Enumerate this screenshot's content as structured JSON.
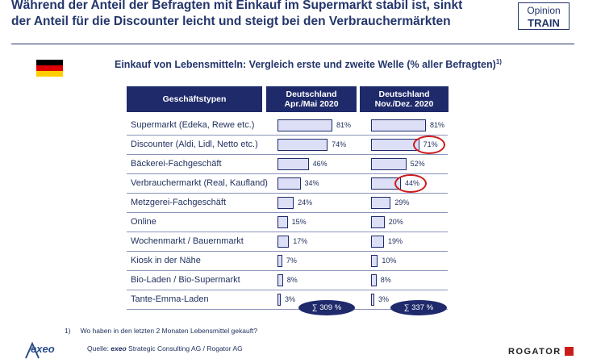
{
  "headline": {
    "line1": "Während der Anteil der Befragten mit Einkauf im Supermarkt stabil ist, sinkt",
    "line2": "der Anteil für die Discounter leicht und steigt bei den Verbrauchermärkten"
  },
  "badge": {
    "line1": "Opinion",
    "line2": "TRAIN"
  },
  "subtitle": "Einkauf von Lebensmitteln: Vergleich erste und zweite Welle (% aller Befragten)",
  "subtitle_sup": "1)",
  "colors": {
    "navy": "#1f2a6b",
    "bar_fill": "#dcdff5",
    "highlight": "#cc1b1b"
  },
  "chart_data": {
    "type": "bar",
    "orientation": "horizontal",
    "category_header": "Geschäftstypen",
    "categories": [
      "Supermarkt (Edeka, Rewe etc.)",
      "Discounter (Aldi, Lidl, Netto etc.)",
      "Bäckerei-Fachgeschäft",
      "Verbrauchermarkt (Real, Kaufland)",
      "Metzgerei-Fachgeschäft",
      "Online",
      "Wochenmarkt / Bauernmarkt",
      "Kiosk in der Nähe",
      "Bio-Laden / Bio-Supermarkt",
      "Tante-Emma-Laden"
    ],
    "series": [
      {
        "header_line1": "Deutschland",
        "header_line2": "Apr./Mai 2020",
        "values": [
          81,
          74,
          46,
          34,
          24,
          15,
          17,
          7,
          8,
          3
        ],
        "labels": [
          "81%",
          "74%",
          "46%",
          "34%",
          "24%",
          "15%",
          "17%",
          "7%",
          "8%",
          "3%"
        ],
        "highlighted": [],
        "sum_label": "∑ 309 %"
      },
      {
        "header_line1": "Deutschland",
        "header_line2": "Nov./Dez. 2020",
        "values": [
          81,
          71,
          52,
          44,
          29,
          20,
          19,
          10,
          8,
          3
        ],
        "labels": [
          "81%",
          "71%",
          "52%",
          "44%",
          "29%",
          "20%",
          "19%",
          "10%",
          "8%",
          "3%"
        ],
        "highlighted": [
          1,
          3
        ],
        "sum_label": "∑ 337 %"
      }
    ],
    "xlim": [
      0,
      100
    ]
  },
  "footnote": {
    "marker": "1)",
    "text": "Wo haben in den letzten 2 Monaten Lebensmittel gekauft?"
  },
  "source": {
    "prefix": "Quelle: ",
    "brand": "exeo",
    "rest": " Strategic Consulting AG / Rogator AG"
  },
  "logos": {
    "left": "exeo",
    "right": "ROGATOR"
  }
}
